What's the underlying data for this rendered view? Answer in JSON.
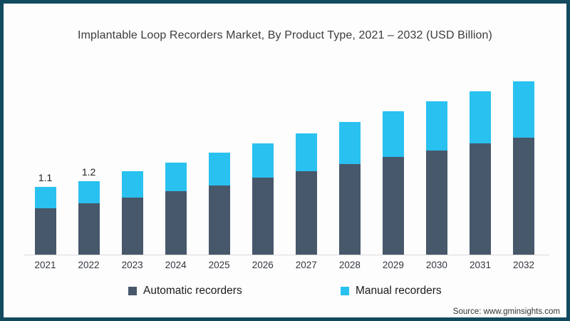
{
  "title": "Implantable Loop Recorders Market, By Product Type, 2021 – 2032 (USD Billion)",
  "source": "Source: www.gminsights.com",
  "colors": {
    "frame_border": "#124A5E",
    "background": "#FDFDFD",
    "automatic": "#47586B",
    "manual": "#29C1F0",
    "axis_line": "#DCDCDC",
    "title_text": "#3C3C3C"
  },
  "legend": {
    "items": [
      {
        "label": "Automatic recorders",
        "color": "#47586B"
      },
      {
        "label": "Manual recorders",
        "color": "#29C1F0"
      }
    ]
  },
  "chart_data": {
    "type": "bar",
    "stacked": true,
    "title": "Implantable Loop Recorders Market, By Product Type, 2021 – 2032 (USD Billion)",
    "xlabel": "",
    "ylabel": "USD Billion",
    "ylim": [
      0,
      3
    ],
    "grid": false,
    "legend_position": "bottom",
    "categories": [
      "2021",
      "2022",
      "2023",
      "2024",
      "2025",
      "2026",
      "2027",
      "2028",
      "2029",
      "2030",
      "2031",
      "2032"
    ],
    "series": [
      {
        "name": "Automatic recorders",
        "color": "#47586B",
        "values": [
          0.76,
          0.84,
          0.93,
          1.03,
          1.13,
          1.26,
          1.36,
          1.48,
          1.59,
          1.7,
          1.81,
          1.91
        ]
      },
      {
        "name": "Manual recorders",
        "color": "#29C1F0",
        "values": [
          0.34,
          0.36,
          0.43,
          0.47,
          0.53,
          0.55,
          0.62,
          0.68,
          0.75,
          0.8,
          0.85,
          0.92
        ]
      }
    ],
    "totals": [
      1.1,
      1.2,
      1.36,
      1.5,
      1.66,
      1.81,
      1.98,
      2.16,
      2.34,
      2.5,
      2.66,
      2.83
    ],
    "bar_labels": [
      "1.1",
      "1.2",
      "",
      "",
      "",
      "",
      "",
      "",
      "",
      "",
      "",
      ""
    ]
  }
}
